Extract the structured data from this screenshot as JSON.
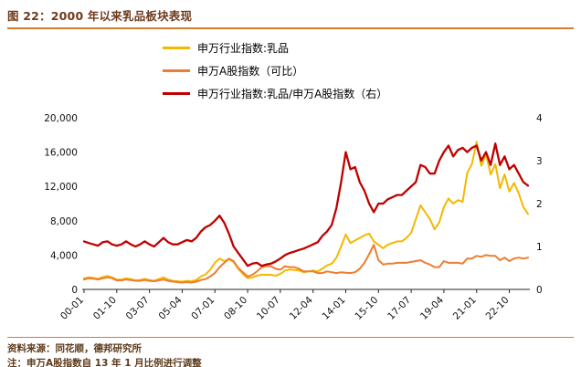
{
  "header": {
    "title": "图 22：2000 年以来乳品板块表现"
  },
  "footer": {
    "source": "资料来源：同花顺，德邦研究所",
    "note": "注：申万A股指数自 13 年 1 月比例进行调整"
  },
  "chart_data": {
    "type": "line",
    "title": "图 22：2000 年以来乳品板块表现",
    "x_start": "2000-01",
    "x_step_months": 3,
    "x_tick_labels": [
      "00-01",
      "01-10",
      "03-07",
      "05-04",
      "07-01",
      "08-10",
      "10-07",
      "12-04",
      "14-01",
      "15-10",
      "17-07",
      "19-04",
      "21-01",
      "22-10"
    ],
    "x_tick_indices": [
      0,
      7,
      14,
      21,
      28,
      35,
      42,
      49,
      56,
      63,
      70,
      77,
      84,
      91
    ],
    "left_axis": {
      "min": 0,
      "max": 20000,
      "ticks": [
        "0",
        "4,000",
        "8,000",
        "12,000",
        "16,000",
        "20,000"
      ]
    },
    "right_axis": {
      "min": 0,
      "max": 4,
      "ticks": [
        "0",
        "1",
        "2",
        "3",
        "4"
      ]
    },
    "grid": false,
    "legend_position": "top",
    "series": [
      {
        "name": "申万行业指数:乳品",
        "axis": "left",
        "color": "#F5B800",
        "stroke_width": 2,
        "values": [
          1300,
          1400,
          1350,
          1250,
          1450,
          1550,
          1400,
          1150,
          1150,
          1300,
          1200,
          1050,
          1100,
          1250,
          1100,
          1000,
          1200,
          1400,
          1150,
          1000,
          950,
          900,
          1000,
          950,
          1100,
          1500,
          1750,
          2300,
          3100,
          3600,
          3300,
          3500,
          3200,
          2400,
          1800,
          1300,
          1400,
          1600,
          1700,
          1700,
          1700,
          1600,
          1800,
          2200,
          2300,
          2250,
          2200,
          2000,
          2100,
          2200,
          2100,
          2400,
          2800,
          3000,
          3700,
          5000,
          6400,
          5400,
          5700,
          6000,
          6300,
          6500,
          5600,
          5200,
          4800,
          5200,
          5400,
          5600,
          5600,
          6000,
          6600,
          8200,
          9800,
          9000,
          8200,
          7000,
          7800,
          9600,
          10600,
          10000,
          10400,
          10200,
          13600,
          14600,
          17200,
          14400,
          15800,
          13400,
          14600,
          11800,
          13400,
          11400,
          12400,
          11200,
          9600,
          8800
        ]
      },
      {
        "name": "申万A股指数（可比）",
        "axis": "left",
        "color": "#ED7D31",
        "stroke_width": 2,
        "values": [
          1150,
          1300,
          1250,
          1150,
          1300,
          1400,
          1300,
          1050,
          1050,
          1150,
          1100,
          1000,
          1000,
          1100,
          1000,
          950,
          1050,
          1150,
          1000,
          900,
          850,
          800,
          850,
          800,
          900,
          1100,
          1200,
          1500,
          1900,
          2600,
          3100,
          3600,
          3300,
          2500,
          2000,
          1500,
          1700,
          2100,
          2600,
          2700,
          2700,
          2400,
          2300,
          2700,
          2600,
          2600,
          2400,
          2100,
          2100,
          2100,
          1900,
          1900,
          2100,
          2000,
          1900,
          2000,
          1950,
          1900,
          2000,
          2400,
          3100,
          4100,
          5200,
          3400,
          2900,
          3000,
          3000,
          3100,
          3100,
          3100,
          3200,
          3300,
          3400,
          3100,
          2900,
          2600,
          2600,
          3300,
          3100,
          3100,
          3100,
          3000,
          3600,
          3600,
          3900,
          3800,
          4000,
          3900,
          3900,
          3400,
          3700,
          3300,
          3600,
          3700,
          3600,
          3700
        ]
      },
      {
        "name": "申万行业指数:乳品/申万A股指数（右）",
        "axis": "right",
        "color": "#C00000",
        "stroke_width": 2.3,
        "values": [
          1.12,
          1.08,
          1.05,
          1.02,
          1.1,
          1.12,
          1.05,
          1.02,
          1.05,
          1.12,
          1.05,
          1.0,
          1.05,
          1.12,
          1.05,
          1.0,
          1.1,
          1.2,
          1.1,
          1.05,
          1.05,
          1.1,
          1.15,
          1.12,
          1.2,
          1.35,
          1.45,
          1.5,
          1.6,
          1.72,
          1.55,
          1.3,
          1.0,
          0.85,
          0.7,
          0.55,
          0.6,
          0.62,
          0.55,
          0.58,
          0.6,
          0.65,
          0.72,
          0.8,
          0.85,
          0.88,
          0.92,
          0.95,
          1.0,
          1.05,
          1.1,
          1.25,
          1.35,
          1.5,
          1.9,
          2.5,
          3.2,
          2.8,
          2.85,
          2.5,
          2.3,
          2.0,
          1.8,
          2.0,
          2.0,
          2.1,
          2.15,
          2.2,
          2.2,
          2.3,
          2.4,
          2.5,
          2.9,
          2.85,
          2.7,
          2.7,
          3.0,
          3.2,
          3.35,
          3.1,
          3.25,
          3.3,
          3.2,
          3.3,
          3.35,
          3.0,
          3.2,
          2.9,
          3.4,
          2.9,
          3.1,
          2.8,
          2.9,
          2.7,
          2.5,
          2.42
        ]
      }
    ]
  }
}
